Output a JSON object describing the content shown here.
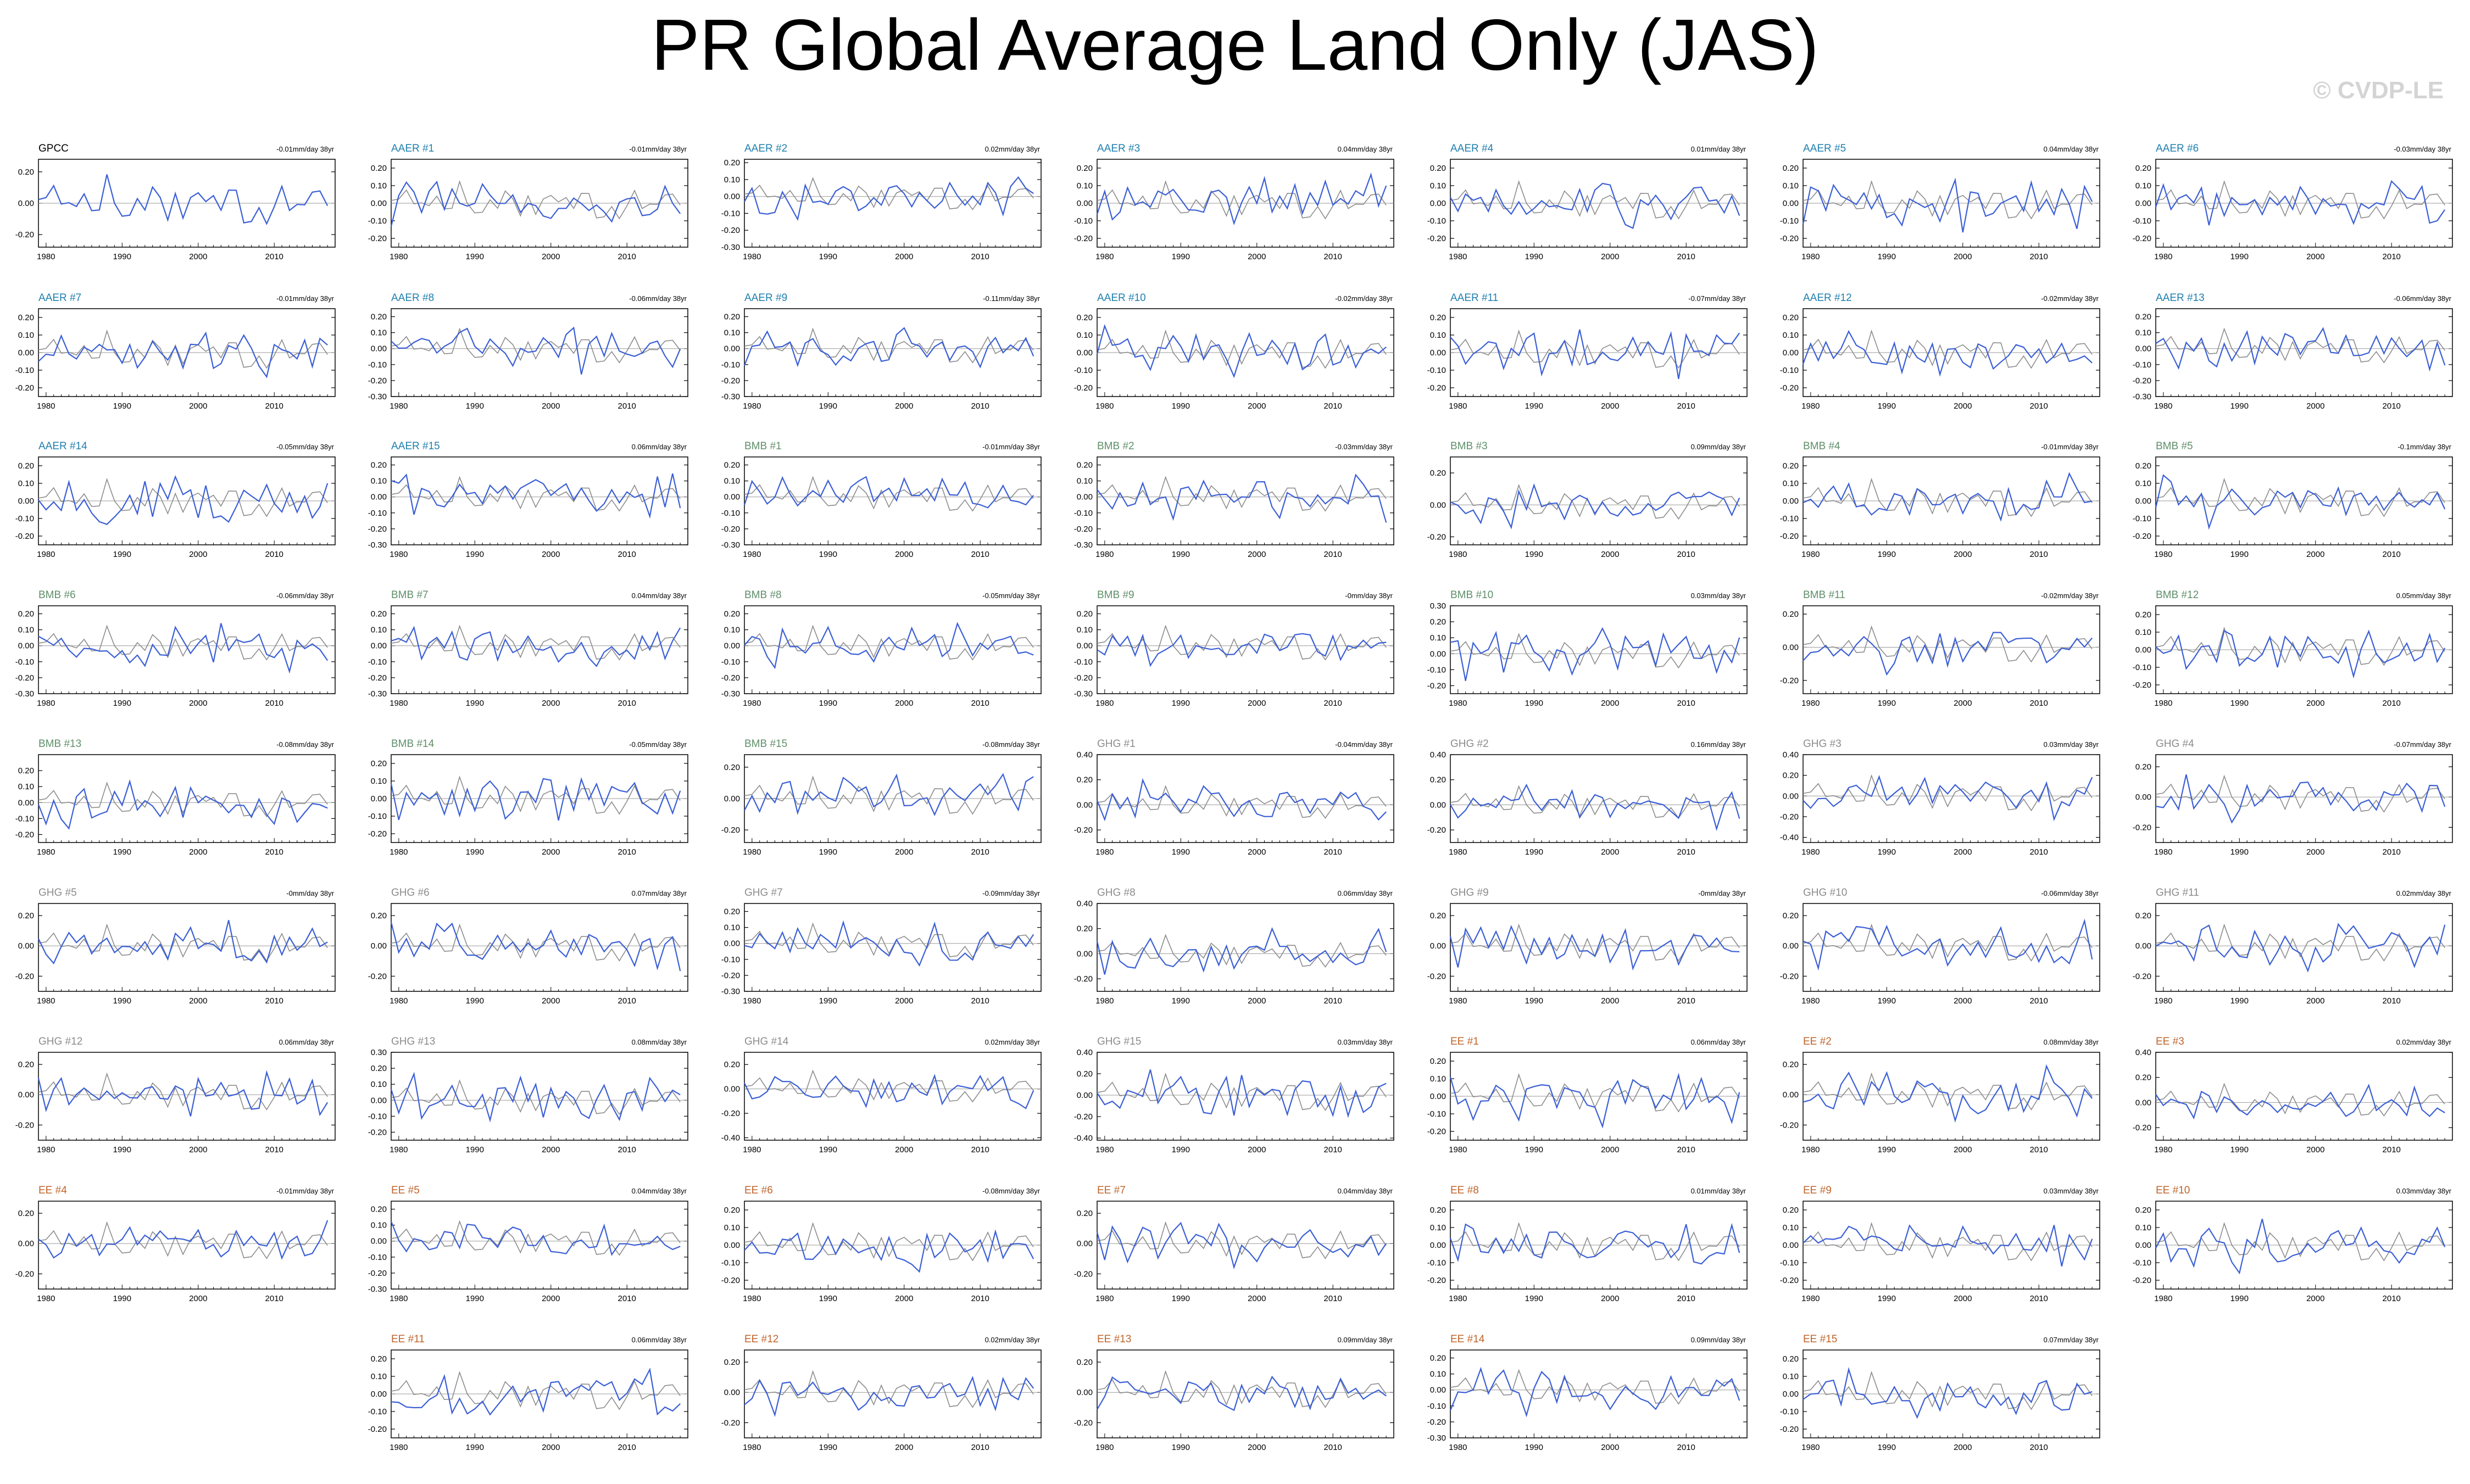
{
  "title": "PR Global Average Land Only (JAS)",
  "watermark": "© CVDP-LE",
  "colors": {
    "model_line": "#3b5fd6",
    "obs_line": "#8c8c8c",
    "AAER": "#1f7fae",
    "BMB": "#5f8f6a",
    "GHG": "#8c8c8c",
    "EE": "#c0642b",
    "GPCC": "#000000"
  },
  "x_ticks": [
    1980,
    1990,
    2000,
    2010
  ],
  "xlim": [
    1979,
    2018
  ],
  "chart_data": [
    {
      "label": "GPCC",
      "group": "GPCC",
      "trend": "-0.01mm/day 38yr",
      "yticks": [
        "0.20",
        "0.00",
        "-0.20"
      ],
      "ylim": [
        -0.28,
        0.28
      ],
      "seed": 1
    },
    {
      "label": "AAER #1",
      "group": "AAER",
      "trend": "-0.01mm/day 38yr",
      "yticks": [
        "0.20",
        "0.10",
        "0.00",
        "-0.10",
        "-0.20"
      ],
      "ylim": [
        -0.25,
        0.25
      ],
      "seed": 2
    },
    {
      "label": "AAER #2",
      "group": "AAER",
      "trend": "0.02mm/day 38yr",
      "yticks": [
        "0.20",
        "0.10",
        "0.00",
        "-0.10",
        "-0.20",
        "-0.30"
      ],
      "ylim": [
        -0.3,
        0.22
      ],
      "seed": 3
    },
    {
      "label": "AAER #3",
      "group": "AAER",
      "trend": "0.04mm/day 38yr",
      "yticks": [
        "0.20",
        "0.10",
        "0.00",
        "-0.10",
        "-0.20"
      ],
      "ylim": [
        -0.25,
        0.25
      ],
      "seed": 4
    },
    {
      "label": "AAER #4",
      "group": "AAER",
      "trend": "0.01mm/day 38yr",
      "yticks": [
        "0.20",
        "0.10",
        "0.00",
        "-0.10",
        "-0.20"
      ],
      "ylim": [
        -0.25,
        0.25
      ],
      "seed": 5
    },
    {
      "label": "AAER #5",
      "group": "AAER",
      "trend": "0.04mm/day 38yr",
      "yticks": [
        "0.20",
        "0.10",
        "0.00",
        "-0.10",
        "-0.20"
      ],
      "ylim": [
        -0.25,
        0.25
      ],
      "seed": 6
    },
    {
      "label": "AAER #6",
      "group": "AAER",
      "trend": "-0.03mm/day 38yr",
      "yticks": [
        "0.20",
        "0.10",
        "0.00",
        "-0.10",
        "-0.20"
      ],
      "ylim": [
        -0.25,
        0.25
      ],
      "seed": 7
    },
    {
      "label": "AAER #7",
      "group": "AAER",
      "trend": "-0.01mm/day 38yr",
      "yticks": [
        "0.20",
        "0.10",
        "0.00",
        "-0.10",
        "-0.20"
      ],
      "ylim": [
        -0.25,
        0.25
      ],
      "seed": 8
    },
    {
      "label": "AAER #8",
      "group": "AAER",
      "trend": "-0.06mm/day 38yr",
      "yticks": [
        "0.20",
        "0.10",
        "0.00",
        "-0.10",
        "-0.20",
        "-0.30"
      ],
      "ylim": [
        -0.3,
        0.25
      ],
      "seed": 9
    },
    {
      "label": "AAER #9",
      "group": "AAER",
      "trend": "-0.11mm/day 38yr",
      "yticks": [
        "0.20",
        "0.10",
        "0.00",
        "-0.10",
        "-0.20",
        "-0.30"
      ],
      "ylim": [
        -0.3,
        0.25
      ],
      "seed": 10
    },
    {
      "label": "AAER #10",
      "group": "AAER",
      "trend": "-0.02mm/day 38yr",
      "yticks": [
        "0.20",
        "0.10",
        "0.00",
        "-0.10",
        "-0.20"
      ],
      "ylim": [
        -0.25,
        0.25
      ],
      "seed": 11
    },
    {
      "label": "AAER #11",
      "group": "AAER",
      "trend": "-0.07mm/day 38yr",
      "yticks": [
        "0.20",
        "0.10",
        "0.00",
        "-0.10",
        "-0.20"
      ],
      "ylim": [
        -0.25,
        0.25
      ],
      "seed": 12
    },
    {
      "label": "AAER #12",
      "group": "AAER",
      "trend": "-0.02mm/day 38yr",
      "yticks": [
        "0.20",
        "0.10",
        "0.00",
        "-0.10",
        "-0.20"
      ],
      "ylim": [
        -0.25,
        0.25
      ],
      "seed": 13
    },
    {
      "label": "AAER #13",
      "group": "AAER",
      "trend": "-0.06mm/day 38yr",
      "yticks": [
        "0.20",
        "0.10",
        "0.00",
        "-0.10",
        "-0.20",
        "-0.30"
      ],
      "ylim": [
        -0.3,
        0.25
      ],
      "seed": 14
    },
    {
      "label": "AAER #14",
      "group": "AAER",
      "trend": "-0.05mm/day 38yr",
      "yticks": [
        "0.20",
        "0.10",
        "0.00",
        "-0.10",
        "-0.20"
      ],
      "ylim": [
        -0.25,
        0.25
      ],
      "seed": 15
    },
    {
      "label": "AAER #15",
      "group": "AAER",
      "trend": "0.06mm/day 38yr",
      "yticks": [
        "0.20",
        "0.10",
        "0.00",
        "-0.10",
        "-0.20",
        "-0.30"
      ],
      "ylim": [
        -0.3,
        0.25
      ],
      "seed": 16
    },
    {
      "label": "BMB #1",
      "group": "BMB",
      "trend": "-0.01mm/day 38yr",
      "yticks": [
        "0.20",
        "0.10",
        "0.00",
        "-0.10",
        "-0.20",
        "-0.30"
      ],
      "ylim": [
        -0.3,
        0.25
      ],
      "seed": 17
    },
    {
      "label": "BMB #2",
      "group": "BMB",
      "trend": "-0.03mm/day 38yr",
      "yticks": [
        "0.20",
        "0.10",
        "0.00",
        "-0.10",
        "-0.20",
        "-0.30"
      ],
      "ylim": [
        -0.3,
        0.25
      ],
      "seed": 18
    },
    {
      "label": "BMB #3",
      "group": "BMB",
      "trend": "0.09mm/day 38yr",
      "yticks": [
        "0.20",
        "0.00",
        "-0.20"
      ],
      "ylim": [
        -0.25,
        0.3
      ],
      "seed": 19
    },
    {
      "label": "BMB #4",
      "group": "BMB",
      "trend": "-0.01mm/day 38yr",
      "yticks": [
        "0.20",
        "0.10",
        "0.00",
        "-0.10",
        "-0.20"
      ],
      "ylim": [
        -0.25,
        0.25
      ],
      "seed": 20
    },
    {
      "label": "BMB #5",
      "group": "BMB",
      "trend": "-0.1mm/day 38yr",
      "yticks": [
        "0.20",
        "0.10",
        "0.00",
        "-0.10",
        "-0.20"
      ],
      "ylim": [
        -0.25,
        0.25
      ],
      "seed": 21
    },
    {
      "label": "BMB #6",
      "group": "BMB",
      "trend": "-0.06mm/day 38yr",
      "yticks": [
        "0.20",
        "0.10",
        "0.00",
        "-0.10",
        "-0.20",
        "-0.30"
      ],
      "ylim": [
        -0.3,
        0.25
      ],
      "seed": 22
    },
    {
      "label": "BMB #7",
      "group": "BMB",
      "trend": "0.04mm/day 38yr",
      "yticks": [
        "0.20",
        "0.10",
        "0.00",
        "-0.10",
        "-0.20",
        "-0.30"
      ],
      "ylim": [
        -0.3,
        0.25
      ],
      "seed": 23
    },
    {
      "label": "BMB #8",
      "group": "BMB",
      "trend": "-0.05mm/day 38yr",
      "yticks": [
        "0.20",
        "0.10",
        "0.00",
        "-0.10",
        "-0.20",
        "-0.30"
      ],
      "ylim": [
        -0.3,
        0.25
      ],
      "seed": 24
    },
    {
      "label": "BMB #9",
      "group": "BMB",
      "trend": "-0mm/day 38yr",
      "yticks": [
        "0.20",
        "0.10",
        "0.00",
        "-0.10",
        "-0.20",
        "-0.30"
      ],
      "ylim": [
        -0.3,
        0.25
      ],
      "seed": 25
    },
    {
      "label": "BMB #10",
      "group": "BMB",
      "trend": "0.03mm/day 38yr",
      "yticks": [
        "0.30",
        "0.20",
        "0.10",
        "0.00",
        "-0.10",
        "-0.20"
      ],
      "ylim": [
        -0.25,
        0.3
      ],
      "seed": 26
    },
    {
      "label": "BMB #11",
      "group": "BMB",
      "trend": "-0.02mm/day 38yr",
      "yticks": [
        "0.20",
        "0.00",
        "-0.20"
      ],
      "ylim": [
        -0.28,
        0.25
      ],
      "seed": 27
    },
    {
      "label": "BMB #12",
      "group": "BMB",
      "trend": "0.05mm/day 38yr",
      "yticks": [
        "0.20",
        "0.10",
        "0.00",
        "-0.10",
        "-0.20"
      ],
      "ylim": [
        -0.25,
        0.25
      ],
      "seed": 28
    },
    {
      "label": "BMB #13",
      "group": "BMB",
      "trend": "-0.08mm/day 38yr",
      "yticks": [
        "0.20",
        "0.10",
        "0.00",
        "-0.10",
        "-0.20"
      ],
      "ylim": [
        -0.25,
        0.3
      ],
      "seed": 29
    },
    {
      "label": "BMB #14",
      "group": "BMB",
      "trend": "-0.05mm/day 38yr",
      "yticks": [
        "0.20",
        "0.10",
        "0.00",
        "-0.10",
        "-0.20"
      ],
      "ylim": [
        -0.25,
        0.25
      ],
      "seed": 30
    },
    {
      "label": "BMB #15",
      "group": "BMB",
      "trend": "-0.08mm/day 38yr",
      "yticks": [
        "0.20",
        "0.00",
        "-0.20"
      ],
      "ylim": [
        -0.28,
        0.28
      ],
      "seed": 31
    },
    {
      "label": "GHG #1",
      "group": "GHG",
      "trend": "-0.04mm/day 38yr",
      "yticks": [
        "0.40",
        "0.20",
        "0.00",
        "-0.20"
      ],
      "ylim": [
        -0.3,
        0.4
      ],
      "seed": 32
    },
    {
      "label": "GHG #2",
      "group": "GHG",
      "trend": "0.16mm/day 38yr",
      "yticks": [
        "0.40",
        "0.20",
        "0.00",
        "-0.20"
      ],
      "ylim": [
        -0.3,
        0.4
      ],
      "seed": 33
    },
    {
      "label": "GHG #3",
      "group": "GHG",
      "trend": "0.03mm/day 38yr",
      "yticks": [
        "0.40",
        "0.20",
        "0.00",
        "-0.20",
        "-0.40"
      ],
      "ylim": [
        -0.45,
        0.4
      ],
      "seed": 34
    },
    {
      "label": "GHG #4",
      "group": "GHG",
      "trend": "-0.07mm/day 38yr",
      "yticks": [
        "0.20",
        "0.00",
        "-0.20"
      ],
      "ylim": [
        -0.3,
        0.28
      ],
      "seed": 35
    },
    {
      "label": "GHG #5",
      "group": "GHG",
      "trend": "-0mm/day 38yr",
      "yticks": [
        "0.20",
        "0.00",
        "-0.20"
      ],
      "ylim": [
        -0.3,
        0.28
      ],
      "seed": 36
    },
    {
      "label": "GHG #6",
      "group": "GHG",
      "trend": "0.07mm/day 38yr",
      "yticks": [
        "0.20",
        "0.00",
        "-0.20"
      ],
      "ylim": [
        -0.3,
        0.28
      ],
      "seed": 37
    },
    {
      "label": "GHG #7",
      "group": "GHG",
      "trend": "-0.09mm/day 38yr",
      "yticks": [
        "0.20",
        "0.10",
        "0.00",
        "-0.10",
        "-0.20",
        "-0.30"
      ],
      "ylim": [
        -0.3,
        0.25
      ],
      "seed": 38
    },
    {
      "label": "GHG #8",
      "group": "GHG",
      "trend": "0.06mm/day 38yr",
      "yticks": [
        "0.40",
        "0.20",
        "0.00",
        "-0.20"
      ],
      "ylim": [
        -0.3,
        0.4
      ],
      "seed": 39
    },
    {
      "label": "GHG #9",
      "group": "GHG",
      "trend": "-0mm/day 38yr",
      "yticks": [
        "0.20",
        "0.00",
        "-0.20"
      ],
      "ylim": [
        -0.3,
        0.28
      ],
      "seed": 40
    },
    {
      "label": "GHG #10",
      "group": "GHG",
      "trend": "-0.06mm/day 38yr",
      "yticks": [
        "0.20",
        "0.00",
        "-0.20"
      ],
      "ylim": [
        -0.3,
        0.28
      ],
      "seed": 41
    },
    {
      "label": "GHG #11",
      "group": "GHG",
      "trend": "0.02mm/day 38yr",
      "yticks": [
        "0.20",
        "0.00",
        "-0.20"
      ],
      "ylim": [
        -0.3,
        0.28
      ],
      "seed": 42
    },
    {
      "label": "GHG #12",
      "group": "GHG",
      "trend": "0.06mm/day 38yr",
      "yticks": [
        "0.20",
        "0.00",
        "-0.20"
      ],
      "ylim": [
        -0.3,
        0.28
      ],
      "seed": 43
    },
    {
      "label": "GHG #13",
      "group": "GHG",
      "trend": "0.08mm/day 38yr",
      "yticks": [
        "0.30",
        "0.20",
        "0.10",
        "0.00",
        "-0.10",
        "-0.20"
      ],
      "ylim": [
        -0.25,
        0.3
      ],
      "seed": 44
    },
    {
      "label": "GHG #14",
      "group": "GHG",
      "trend": "0.02mm/day 38yr",
      "yticks": [
        "0.20",
        "0.00",
        "-0.20",
        "-0.40"
      ],
      "ylim": [
        -0.42,
        0.3
      ],
      "seed": 45
    },
    {
      "label": "GHG #15",
      "group": "GHG",
      "trend": "0.03mm/day 38yr",
      "yticks": [
        "0.40",
        "0.20",
        "0.00",
        "-0.20",
        "-0.40"
      ],
      "ylim": [
        -0.42,
        0.4
      ],
      "seed": 46
    },
    {
      "label": "EE #1",
      "group": "EE",
      "trend": "0.06mm/day 38yr",
      "yticks": [
        "0.20",
        "0.10",
        "0.00",
        "-0.10",
        "-0.20"
      ],
      "ylim": [
        -0.25,
        0.25
      ],
      "seed": 47
    },
    {
      "label": "EE #2",
      "group": "EE",
      "trend": "0.08mm/day 38yr",
      "yticks": [
        "0.20",
        "0.00",
        "-0.20"
      ],
      "ylim": [
        -0.3,
        0.28
      ],
      "seed": 48
    },
    {
      "label": "EE #3",
      "group": "EE",
      "trend": "0.02mm/day 38yr",
      "yticks": [
        "0.40",
        "0.20",
        "0.00",
        "-0.20"
      ],
      "ylim": [
        -0.3,
        0.4
      ],
      "seed": 49
    },
    {
      "label": "EE #4",
      "group": "EE",
      "trend": "-0.01mm/day 38yr",
      "yticks": [
        "0.20",
        "0.00",
        "-0.20"
      ],
      "ylim": [
        -0.3,
        0.28
      ],
      "seed": 50
    },
    {
      "label": "EE #5",
      "group": "EE",
      "trend": "0.04mm/day 38yr",
      "yticks": [
        "0.20",
        "0.10",
        "0.00",
        "-0.10",
        "-0.20",
        "-0.30"
      ],
      "ylim": [
        -0.3,
        0.25
      ],
      "seed": 51
    },
    {
      "label": "EE #6",
      "group": "EE",
      "trend": "-0.08mm/day 38yr",
      "yticks": [
        "0.20",
        "0.10",
        "0.00",
        "-0.10",
        "-0.20"
      ],
      "ylim": [
        -0.25,
        0.25
      ],
      "seed": 52
    },
    {
      "label": "EE #7",
      "group": "EE",
      "trend": "0.04mm/day 38yr",
      "yticks": [
        "0.20",
        "0.00",
        "-0.20"
      ],
      "ylim": [
        -0.3,
        0.28
      ],
      "seed": 53
    },
    {
      "label": "EE #8",
      "group": "EE",
      "trend": "0.01mm/day 38yr",
      "yticks": [
        "0.20",
        "0.10",
        "0.00",
        "-0.10",
        "-0.20"
      ],
      "ylim": [
        -0.25,
        0.25
      ],
      "seed": 54
    },
    {
      "label": "EE #9",
      "group": "EE",
      "trend": "0.03mm/day 38yr",
      "yticks": [
        "0.20",
        "0.10",
        "0.00",
        "-0.10",
        "-0.20"
      ],
      "ylim": [
        -0.25,
        0.25
      ],
      "seed": 55
    },
    {
      "label": "EE #10",
      "group": "EE",
      "trend": "0.03mm/day 38yr",
      "yticks": [
        "0.20",
        "0.10",
        "0.00",
        "-0.10",
        "-0.20"
      ],
      "ylim": [
        -0.25,
        0.25
      ],
      "seed": 56
    },
    {
      "label": "EE #11",
      "group": "EE",
      "trend": "0.06mm/day 38yr",
      "yticks": [
        "0.20",
        "0.10",
        "0.00",
        "-0.10",
        "-0.20"
      ],
      "ylim": [
        -0.25,
        0.25
      ],
      "seed": 57
    },
    {
      "label": "EE #12",
      "group": "EE",
      "trend": "0.02mm/day 38yr",
      "yticks": [
        "0.20",
        "0.00",
        "-0.20"
      ],
      "ylim": [
        -0.3,
        0.28
      ],
      "seed": 58
    },
    {
      "label": "EE #13",
      "group": "EE",
      "trend": "0.09mm/day 38yr",
      "yticks": [
        "0.20",
        "0.00",
        "-0.20"
      ],
      "ylim": [
        -0.3,
        0.28
      ],
      "seed": 59
    },
    {
      "label": "EE #14",
      "group": "EE",
      "trend": "0.09mm/day 38yr",
      "yticks": [
        "0.20",
        "0.10",
        "0.00",
        "-0.10",
        "-0.20",
        "-0.30"
      ],
      "ylim": [
        -0.3,
        0.25
      ],
      "seed": 60
    },
    {
      "label": "EE #15",
      "group": "EE",
      "trend": "0.07mm/day 38yr",
      "yticks": [
        "0.20",
        "0.10",
        "0.00",
        "-0.10",
        "-0.20"
      ],
      "ylim": [
        -0.25,
        0.25
      ],
      "seed": 61
    }
  ]
}
